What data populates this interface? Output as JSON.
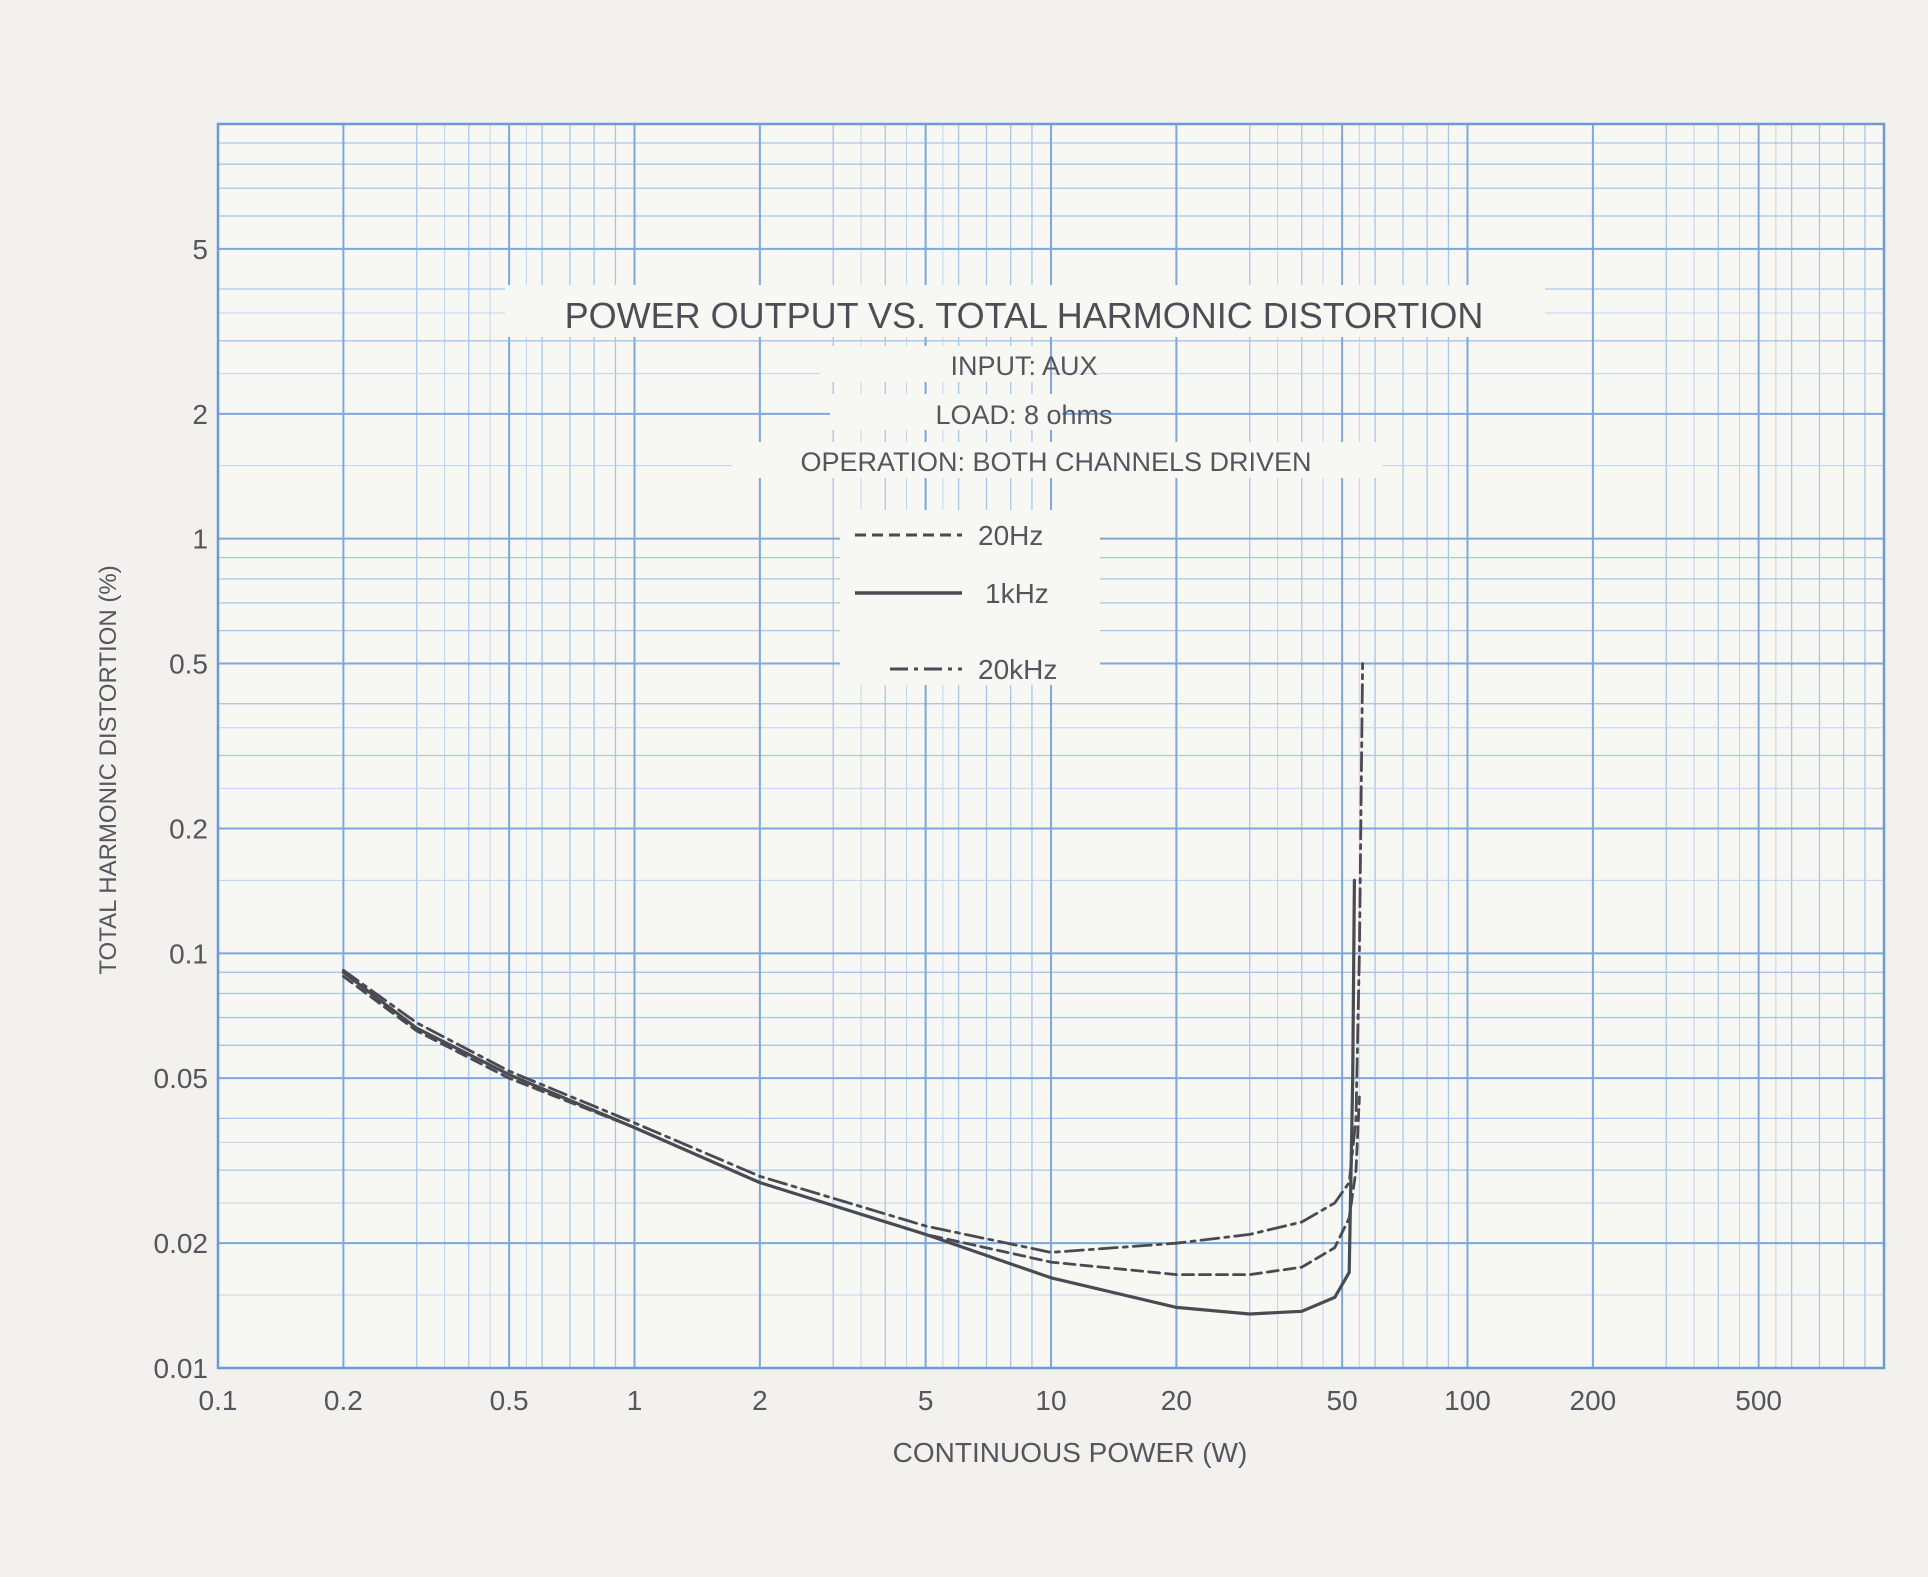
{
  "chart_data": {
    "type": "line",
    "title": "POWER OUTPUT VS. TOTAL HARMONIC DISTORTION",
    "subtitle_lines": [
      "INPUT: AUX",
      "LOAD: 8 ohms",
      "OPERATION: BOTH CHANNELS DRIVEN"
    ],
    "xlabel": "CONTINUOUS POWER (W)",
    "ylabel": "TOTAL HARMONIC DISTORTION (%)",
    "x_scale": "log",
    "y_scale": "log",
    "xlim": [
      0.1,
      1000
    ],
    "ylim": [
      0.01,
      10
    ],
    "x_ticks": [
      {
        "value": 0.1,
        "label": "0.1"
      },
      {
        "value": 0.2,
        "label": "0.2"
      },
      {
        "value": 0.5,
        "label": "0.5"
      },
      {
        "value": 1,
        "label": "1"
      },
      {
        "value": 2,
        "label": "2"
      },
      {
        "value": 5,
        "label": "5"
      },
      {
        "value": 10,
        "label": "10"
      },
      {
        "value": 20,
        "label": "20"
      },
      {
        "value": 50,
        "label": "50"
      },
      {
        "value": 100,
        "label": "100"
      },
      {
        "value": 200,
        "label": "200"
      },
      {
        "value": 500,
        "label": "500"
      }
    ],
    "y_ticks": [
      {
        "value": 0.01,
        "label": "0.01"
      },
      {
        "value": 0.02,
        "label": "0.02"
      },
      {
        "value": 0.05,
        "label": "0.05"
      },
      {
        "value": 0.1,
        "label": "0.1"
      },
      {
        "value": 0.2,
        "label": "0.2"
      },
      {
        "value": 0.5,
        "label": "0.5"
      },
      {
        "value": 1,
        "label": "1"
      },
      {
        "value": 2,
        "label": "2"
      },
      {
        "value": 5,
        "label": "5"
      }
    ],
    "grid": true,
    "legend_placement": "top-center",
    "series": [
      {
        "name": "20Hz",
        "style": "dashed",
        "color": "#4a4a52",
        "points": [
          [
            0.2,
            0.088
          ],
          [
            0.3,
            0.065
          ],
          [
            0.5,
            0.05
          ],
          [
            1,
            0.038
          ],
          [
            2,
            0.028
          ],
          [
            5,
            0.021
          ],
          [
            10,
            0.018
          ],
          [
            20,
            0.0168
          ],
          [
            30,
            0.0168
          ],
          [
            40,
            0.0175
          ],
          [
            48,
            0.0195
          ],
          [
            52,
            0.023
          ],
          [
            54,
            0.03
          ],
          [
            55,
            0.045
          ]
        ]
      },
      {
        "name": "1kHz",
        "style": "solid",
        "color": "#4a4a52",
        "points": [
          [
            0.2,
            0.09
          ],
          [
            0.3,
            0.066
          ],
          [
            0.5,
            0.051
          ],
          [
            1,
            0.038
          ],
          [
            2,
            0.028
          ],
          [
            5,
            0.021
          ],
          [
            10,
            0.0165
          ],
          [
            20,
            0.014
          ],
          [
            30,
            0.0135
          ],
          [
            40,
            0.0137
          ],
          [
            48,
            0.0148
          ],
          [
            52,
            0.017
          ],
          [
            53,
            0.05
          ],
          [
            53.5,
            0.15
          ]
        ]
      },
      {
        "name": "20kHz",
        "style": "dash-dot",
        "color": "#4a4a52",
        "points": [
          [
            0.2,
            0.091
          ],
          [
            0.3,
            0.068
          ],
          [
            0.5,
            0.052
          ],
          [
            1,
            0.039
          ],
          [
            2,
            0.029
          ],
          [
            5,
            0.022
          ],
          [
            10,
            0.019
          ],
          [
            20,
            0.02
          ],
          [
            30,
            0.021
          ],
          [
            40,
            0.0225
          ],
          [
            48,
            0.025
          ],
          [
            52,
            0.028
          ],
          [
            54,
            0.04
          ],
          [
            55,
            0.1
          ],
          [
            56,
            0.5
          ]
        ]
      }
    ]
  }
}
